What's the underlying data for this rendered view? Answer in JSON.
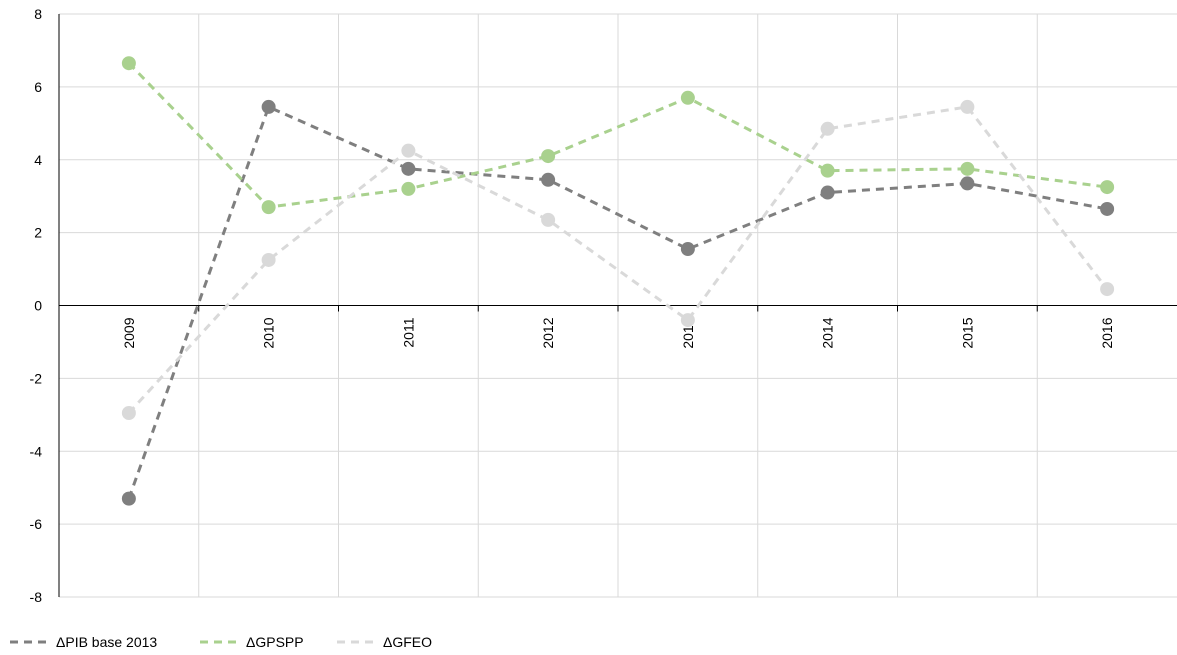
{
  "chart_data": {
    "type": "line",
    "title": "",
    "xlabel": "",
    "ylabel": "",
    "categories": [
      "2009",
      "2010",
      "2011",
      "2012",
      "2013",
      "2014",
      "2015",
      "2016"
    ],
    "ylim": [
      -8,
      8
    ],
    "yticks": [
      "8",
      "6",
      "4",
      "2",
      "0",
      "-2",
      "-4",
      "-6",
      "-8"
    ],
    "grid": true,
    "legend_position": "bottom-left",
    "series": [
      {
        "name": "ΔPIB base 2013",
        "color": "#7f7f7f",
        "values": [
          -5.3,
          5.45,
          3.75,
          3.45,
          1.55,
          3.1,
          3.35,
          2.65
        ]
      },
      {
        "name": "ΔGPSPP",
        "color": "#a9d18e",
        "values": [
          6.65,
          2.7,
          3.2,
          4.1,
          5.7,
          3.7,
          3.75,
          3.25
        ]
      },
      {
        "name": "ΔGFEO",
        "color": "#d9d9d9",
        "values": [
          -2.95,
          1.25,
          4.25,
          2.35,
          -0.4,
          4.85,
          5.45,
          0.45
        ]
      }
    ]
  }
}
